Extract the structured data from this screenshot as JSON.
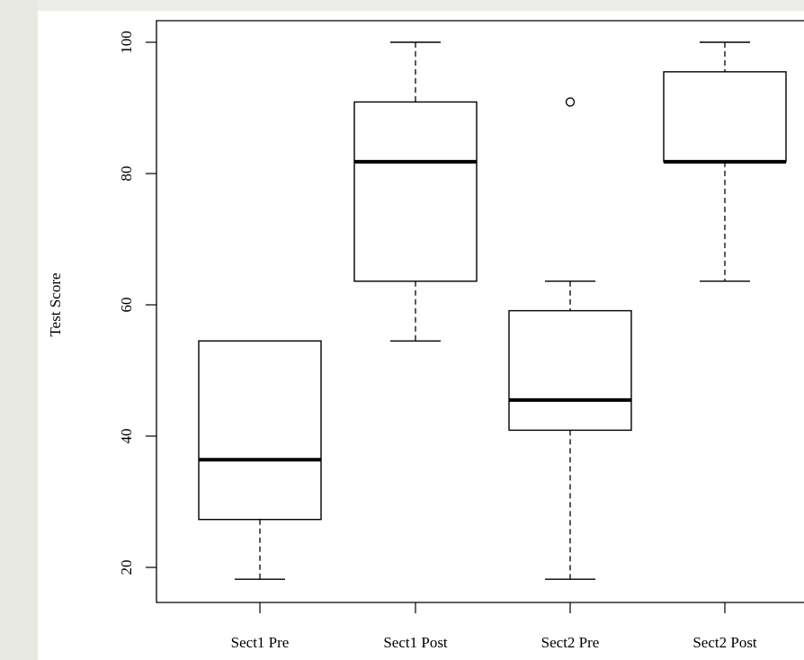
{
  "chart_data": {
    "type": "boxplot",
    "title": "",
    "xlabel": "",
    "ylabel": "Test Score",
    "ylim": [
      15,
      103
    ],
    "y_ticks": [
      "20",
      "40",
      "60",
      "80",
      "100"
    ],
    "categories": [
      "Sect1 Pre",
      "Sect1 Post",
      "Sect2 Pre",
      "Sect2 Post"
    ],
    "boxes": [
      {
        "label": "Sect1 Pre",
        "whisker_low": 18.2,
        "q1": 27.3,
        "median": 36.4,
        "q3": 54.5,
        "whisker_high": 54.5,
        "outliers": []
      },
      {
        "label": "Sect1 Post",
        "whisker_low": 54.5,
        "q1": 63.6,
        "median": 81.8,
        "q3": 90.9,
        "whisker_high": 100,
        "outliers": []
      },
      {
        "label": "Sect2 Pre",
        "whisker_low": 18.2,
        "q1": 40.9,
        "median": 45.5,
        "q3": 59.1,
        "whisker_high": 63.6,
        "outliers": [
          90.9
        ]
      },
      {
        "label": "Sect2 Post",
        "whisker_low": 63.6,
        "q1": 81.8,
        "median": 81.8,
        "q3": 95.5,
        "whisker_high": 100,
        "outliers": []
      }
    ],
    "grid": false,
    "legend": "none"
  }
}
